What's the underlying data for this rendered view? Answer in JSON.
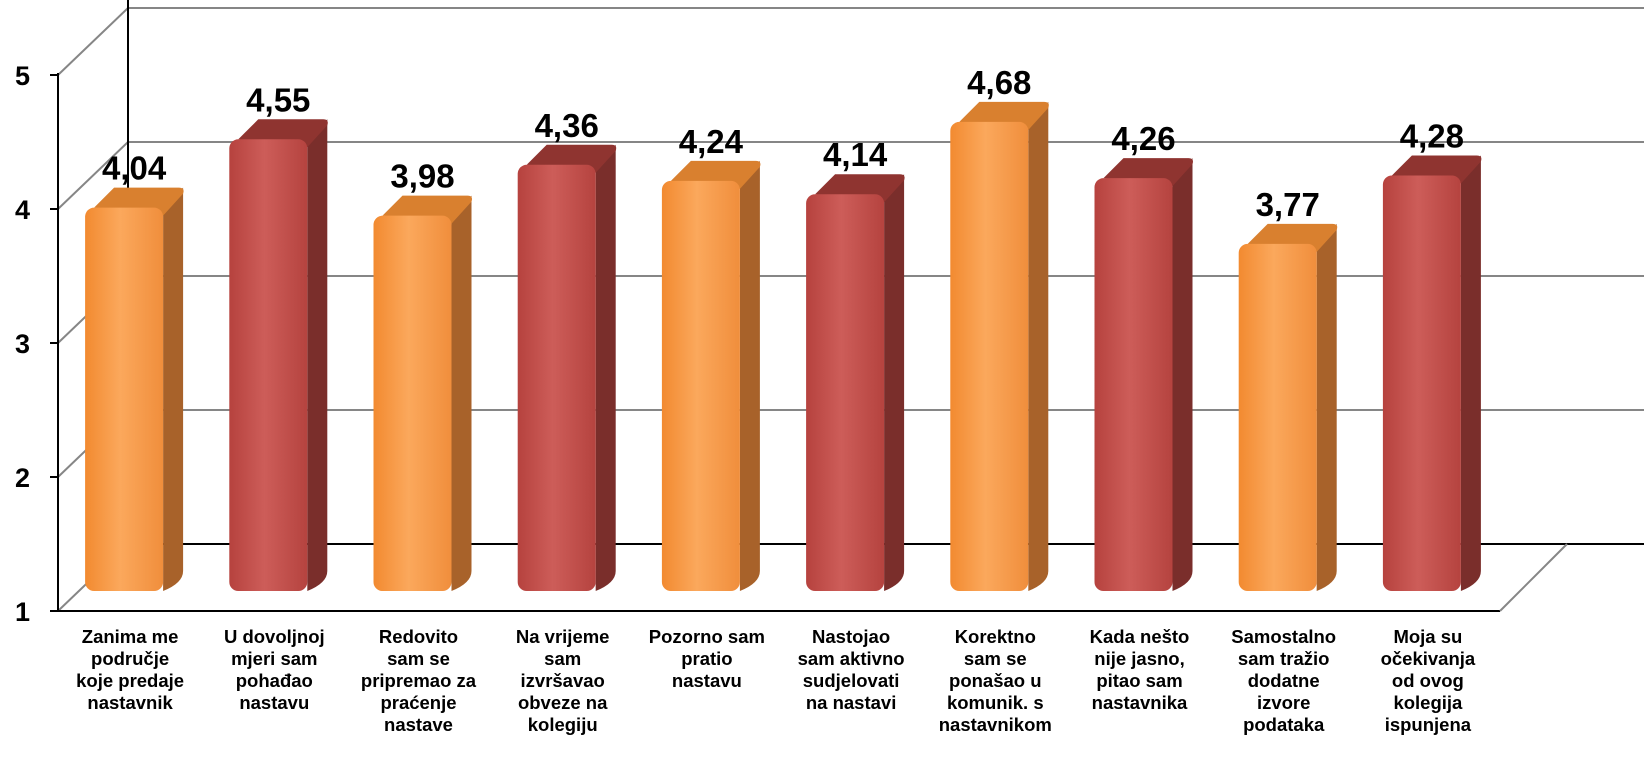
{
  "chart_data": {
    "type": "bar",
    "title": "",
    "xlabel": "",
    "ylabel": "",
    "ylim": [
      1,
      5
    ],
    "yticks": [
      "1",
      "2",
      "3",
      "4",
      "5"
    ],
    "grid": true,
    "style": "3d-column",
    "colors": [
      "#F79646",
      "#C0504D"
    ],
    "categories": [
      "Zanima me\npodručje\nkoje predaje\nnastavnik",
      "U dovoljnoj\nmjeri sam\npohađao\nnastavu",
      "Redovito\nsam se\npripremao za\npraćenje\nnastave",
      "Na vrijeme\nsam\nizvršavao\nobveze na\nkolegiju",
      "Pozorno sam\npratio\nnastavu",
      "Nastojao\nsam aktivno\nsudjelovati\nna nastavi",
      "Korektno\nsam se\nponašao u\nkomunik. s\nnastavnikom",
      "Kada nešto\nnije jasno,\npitao sam\nnastavnika",
      "Samostalno\nsam tražio\ndodatne\nizvore\npodataka",
      "Moja su\nočekivanja\nod ovog\nkolegija\nispunjena"
    ],
    "values": [
      4.04,
      4.55,
      3.98,
      4.36,
      4.24,
      4.14,
      4.68,
      4.26,
      3.77,
      4.28
    ],
    "value_labels": [
      "4,04",
      "4,55",
      "3,98",
      "4,36",
      "4,24",
      "4,14",
      "4,68",
      "4,26",
      "3,77",
      "4,28"
    ],
    "bar_colors": [
      "orange",
      "red",
      "orange",
      "red",
      "orange",
      "red",
      "orange",
      "red",
      "orange",
      "red"
    ]
  }
}
